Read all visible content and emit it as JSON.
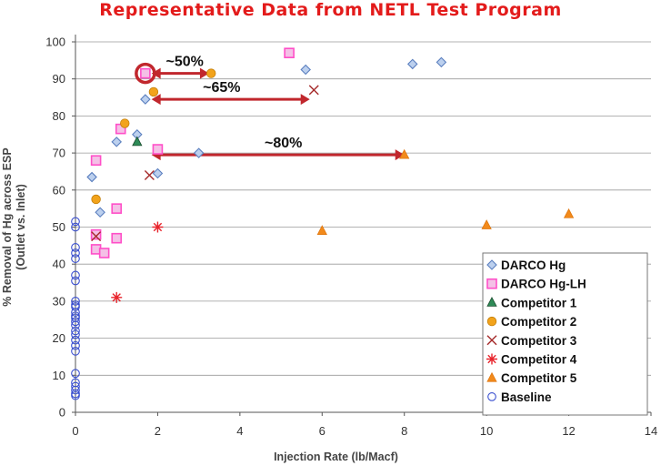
{
  "colors": {
    "title": "#e31b1b",
    "arrow": "#c1272d",
    "darco_hg": "#5b7fbf",
    "darco_hg_lh": "#ff4fc8",
    "competitor_1": "#2e8b57",
    "competitor_2": "#f2a31b",
    "competitor_3": "#a52a2a",
    "competitor_4": "#e8242c",
    "competitor_5": "#f28a1b",
    "baseline": "#3a4fd0"
  },
  "chart_data": {
    "type": "scatter",
    "title": "Representative Data from NETL Test Program",
    "xlabel": "Injection Rate (lb/Macf)",
    "ylabel": "% Removal of Hg across ESP",
    "ylabel_sub": "(Outlet vs. Inlet)",
    "xlim": [
      0,
      14
    ],
    "ylim": [
      0,
      100
    ],
    "xticks": [
      "0",
      "2",
      "4",
      "6",
      "8",
      "10",
      "12",
      "14"
    ],
    "yticks": [
      "0",
      "10",
      "20",
      "30",
      "40",
      "50",
      "60",
      "70",
      "80",
      "90",
      "100"
    ],
    "legend_position": "bottom-right",
    "series": [
      {
        "name": "DARCO Hg",
        "marker": "diamond",
        "x": [
          0.4,
          0.6,
          1.0,
          1.5,
          1.7,
          2.0,
          3.0,
          5.6,
          8.2,
          8.9
        ],
        "y": [
          63.5,
          54,
          73,
          75,
          84.5,
          64.5,
          70,
          92.5,
          94,
          94.5
        ]
      },
      {
        "name": "DARCO Hg-LH",
        "marker": "square",
        "x": [
          0.5,
          0.5,
          0.5,
          0.7,
          1.0,
          1.0,
          1.1,
          1.7,
          2.0,
          5.2
        ],
        "y": [
          68,
          48,
          44,
          43,
          55,
          47,
          76.5,
          91.5,
          71,
          97
        ]
      },
      {
        "name": "Competitor 1",
        "marker": "triangle",
        "x": [
          1.5
        ],
        "y": [
          73
        ]
      },
      {
        "name": "Competitor 2",
        "marker": "circle-filled",
        "x": [
          0.5,
          1.2,
          1.9,
          3.3
        ],
        "y": [
          57.5,
          78,
          86.5,
          91.5
        ]
      },
      {
        "name": "Competitor 3",
        "marker": "x",
        "x": [
          0.5,
          1.8,
          5.8
        ],
        "y": [
          47.5,
          64,
          87
        ]
      },
      {
        "name": "Competitor 4",
        "marker": "star",
        "x": [
          1.0,
          2.0
        ],
        "y": [
          31,
          50
        ]
      },
      {
        "name": "Competitor 5",
        "marker": "triangle",
        "x": [
          6.0,
          8.0,
          10.0,
          12.0
        ],
        "y": [
          49,
          69.5,
          50.5,
          53.5
        ]
      },
      {
        "name": "Baseline",
        "marker": "circle-open",
        "x": [
          0,
          0,
          0,
          0,
          0,
          0,
          0,
          0,
          0,
          0,
          0,
          0,
          0,
          0,
          0,
          0,
          0,
          0,
          0,
          0,
          0,
          0,
          0,
          0,
          0,
          0
        ],
        "y": [
          51.5,
          50,
          44.5,
          43,
          41.5,
          37,
          35.5,
          30,
          28.5,
          27,
          25.5,
          24.5,
          23.5,
          21,
          19.5,
          18,
          16.5,
          10.5,
          8,
          7,
          5,
          4.5,
          26,
          29,
          22,
          6
        ]
      }
    ],
    "annotations": [
      {
        "text": "~50%",
        "x": 2.2,
        "y": 93.5,
        "arrow_from": [
          1.85,
          91.5
        ],
        "arrow_to": [
          3.25,
          91.5
        ]
      },
      {
        "text": "~65%",
        "x": 3.1,
        "y": 86.5,
        "arrow_from": [
          1.85,
          84.5
        ],
        "arrow_to": [
          5.7,
          84.5
        ]
      },
      {
        "text": "~80%",
        "x": 4.6,
        "y": 71.5,
        "arrow_from": [
          1.85,
          69.5
        ],
        "arrow_to": [
          8.0,
          69.5
        ]
      }
    ],
    "highlight_circle": {
      "x": 1.7,
      "y": 91.5
    }
  }
}
